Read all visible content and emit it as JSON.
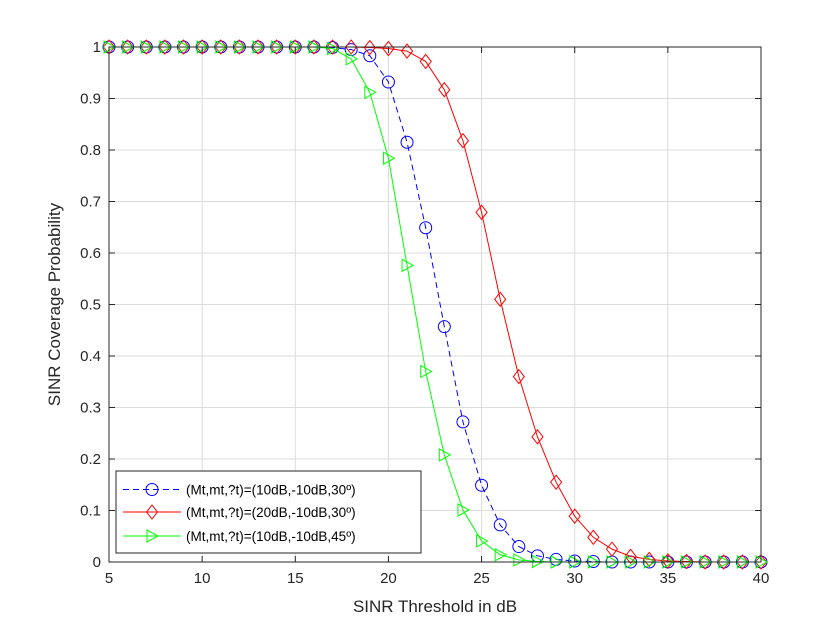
{
  "chart_data": {
    "type": "line",
    "xlabel": "SINR Threshold in dB",
    "ylabel": "SINR Coverage Probability",
    "xlim": [
      5,
      40
    ],
    "ylim": [
      0,
      1
    ],
    "xticks": [
      5,
      10,
      15,
      20,
      25,
      30,
      35,
      40
    ],
    "yticks": [
      0,
      0.1,
      0.2,
      0.3,
      0.4,
      0.5,
      0.6,
      0.7,
      0.8,
      0.9,
      1
    ],
    "x_tick_labels": [
      "5",
      "10",
      "15",
      "20",
      "25",
      "30",
      "35",
      "40"
    ],
    "y_tick_labels": [
      "0",
      "0.1",
      "0.2",
      "0.3",
      "0.4",
      "0.5",
      "0.6",
      "0.7",
      "0.8",
      "0.9",
      "1"
    ],
    "grid": true,
    "legend_position": "bottom-left",
    "x": [
      5,
      6,
      7,
      8,
      9,
      10,
      11,
      12,
      13,
      14,
      15,
      16,
      17,
      18,
      19,
      20,
      21,
      22,
      23,
      24,
      25,
      26,
      27,
      28,
      29,
      30,
      31,
      32,
      33,
      34,
      35,
      36,
      37,
      38,
      39,
      40
    ],
    "series": [
      {
        "name": "(Mt,mt,?t)=(10dB,-10dB,30º)",
        "color": "#0000ff",
        "line_style": "dashed",
        "marker": "circle",
        "values": [
          1,
          1,
          1,
          1,
          1,
          1,
          1,
          1,
          1,
          1,
          1,
          1,
          0.999,
          0.995,
          0.983,
          0.932,
          0.815,
          0.649,
          0.457,
          0.272,
          0.149,
          0.072,
          0.03,
          0.012,
          0.005,
          0.002,
          0.001,
          0,
          0,
          0,
          0,
          0,
          0,
          0,
          0,
          0
        ]
      },
      {
        "name": "(Mt,mt,?t)=(20dB,-10dB,30º)",
        "color": "#ff0000",
        "line_style": "solid",
        "marker": "diamond",
        "values": [
          1,
          1,
          1,
          1,
          1,
          1,
          1,
          1,
          1,
          1,
          1,
          1,
          1,
          1,
          0.999,
          0.997,
          0.992,
          0.972,
          0.917,
          0.818,
          0.679,
          0.51,
          0.36,
          0.243,
          0.155,
          0.089,
          0.048,
          0.025,
          0.011,
          0.005,
          0.002,
          0.001,
          0,
          0,
          0,
          0
        ]
      },
      {
        "name": "(Mt,mt,?t)=(10dB,-10dB,45º)",
        "color": "#00ff00",
        "line_style": "solid",
        "marker": "triangle-right",
        "values": [
          1,
          1,
          1,
          1,
          1,
          1,
          1,
          1,
          1,
          1,
          1,
          1,
          0.997,
          0.977,
          0.912,
          0.784,
          0.576,
          0.37,
          0.208,
          0.101,
          0.041,
          0.014,
          0.004,
          0.001,
          0,
          0,
          0,
          0,
          0,
          0,
          0,
          0,
          0,
          0,
          0,
          0
        ]
      }
    ]
  }
}
